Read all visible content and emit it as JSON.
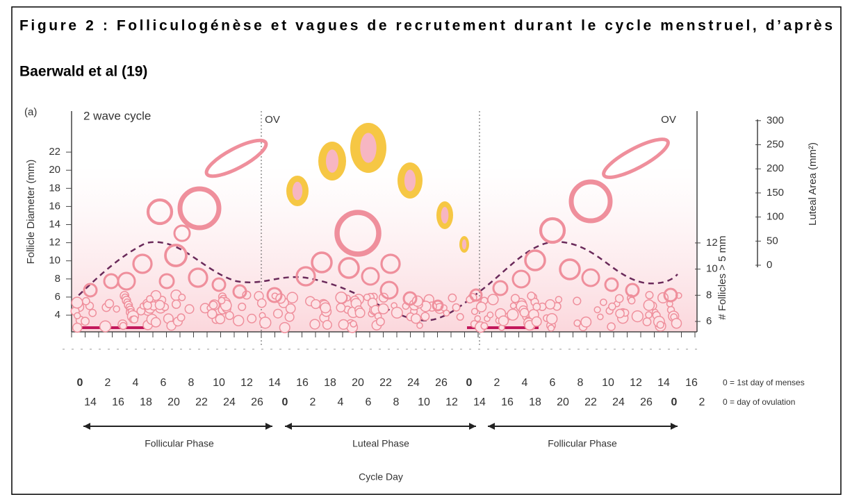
{
  "caption": {
    "line1": "Figure 2 : Folliculogénèse et vagues de recrutement durant le cycle menstruel, d’après",
    "line2": "Baerwald et al (19)"
  },
  "figure": {
    "panel_label": "(a)",
    "subtitle": "2 wave cycle",
    "ov_labels": [
      "OV",
      "OV"
    ],
    "left_axis": {
      "label": "Follicle Diameter (mm)",
      "ticks": [
        4,
        6,
        8,
        10,
        12,
        14,
        16,
        18,
        20,
        22
      ]
    },
    "follicles_axis": {
      "label": "# Follicles > 5 mm",
      "ticks": [
        6,
        8,
        10,
        12
      ]
    },
    "luteal_axis": {
      "label": "Luteal Area (mm²)",
      "ticks": [
        0,
        50,
        100,
        150,
        200,
        250,
        300
      ]
    },
    "days_menses": [
      0,
      2,
      4,
      6,
      8,
      10,
      12,
      14,
      16,
      18,
      20,
      22,
      24,
      26,
      0,
      2,
      4,
      6,
      8,
      10,
      12,
      14,
      16
    ],
    "days_ovulation": [
      14,
      16,
      18,
      20,
      22,
      24,
      26,
      0,
      2,
      4,
      6,
      8,
      10,
      12,
      14,
      16,
      18,
      20,
      22,
      24,
      26,
      0,
      2
    ],
    "legend": [
      "0 = 1st day of menses",
      "0 = day of ovulation"
    ],
    "phases": [
      "Follicular Phase",
      "Luteal Phase",
      "Follicular Phase"
    ],
    "x_label": "Cycle Day"
  }
}
